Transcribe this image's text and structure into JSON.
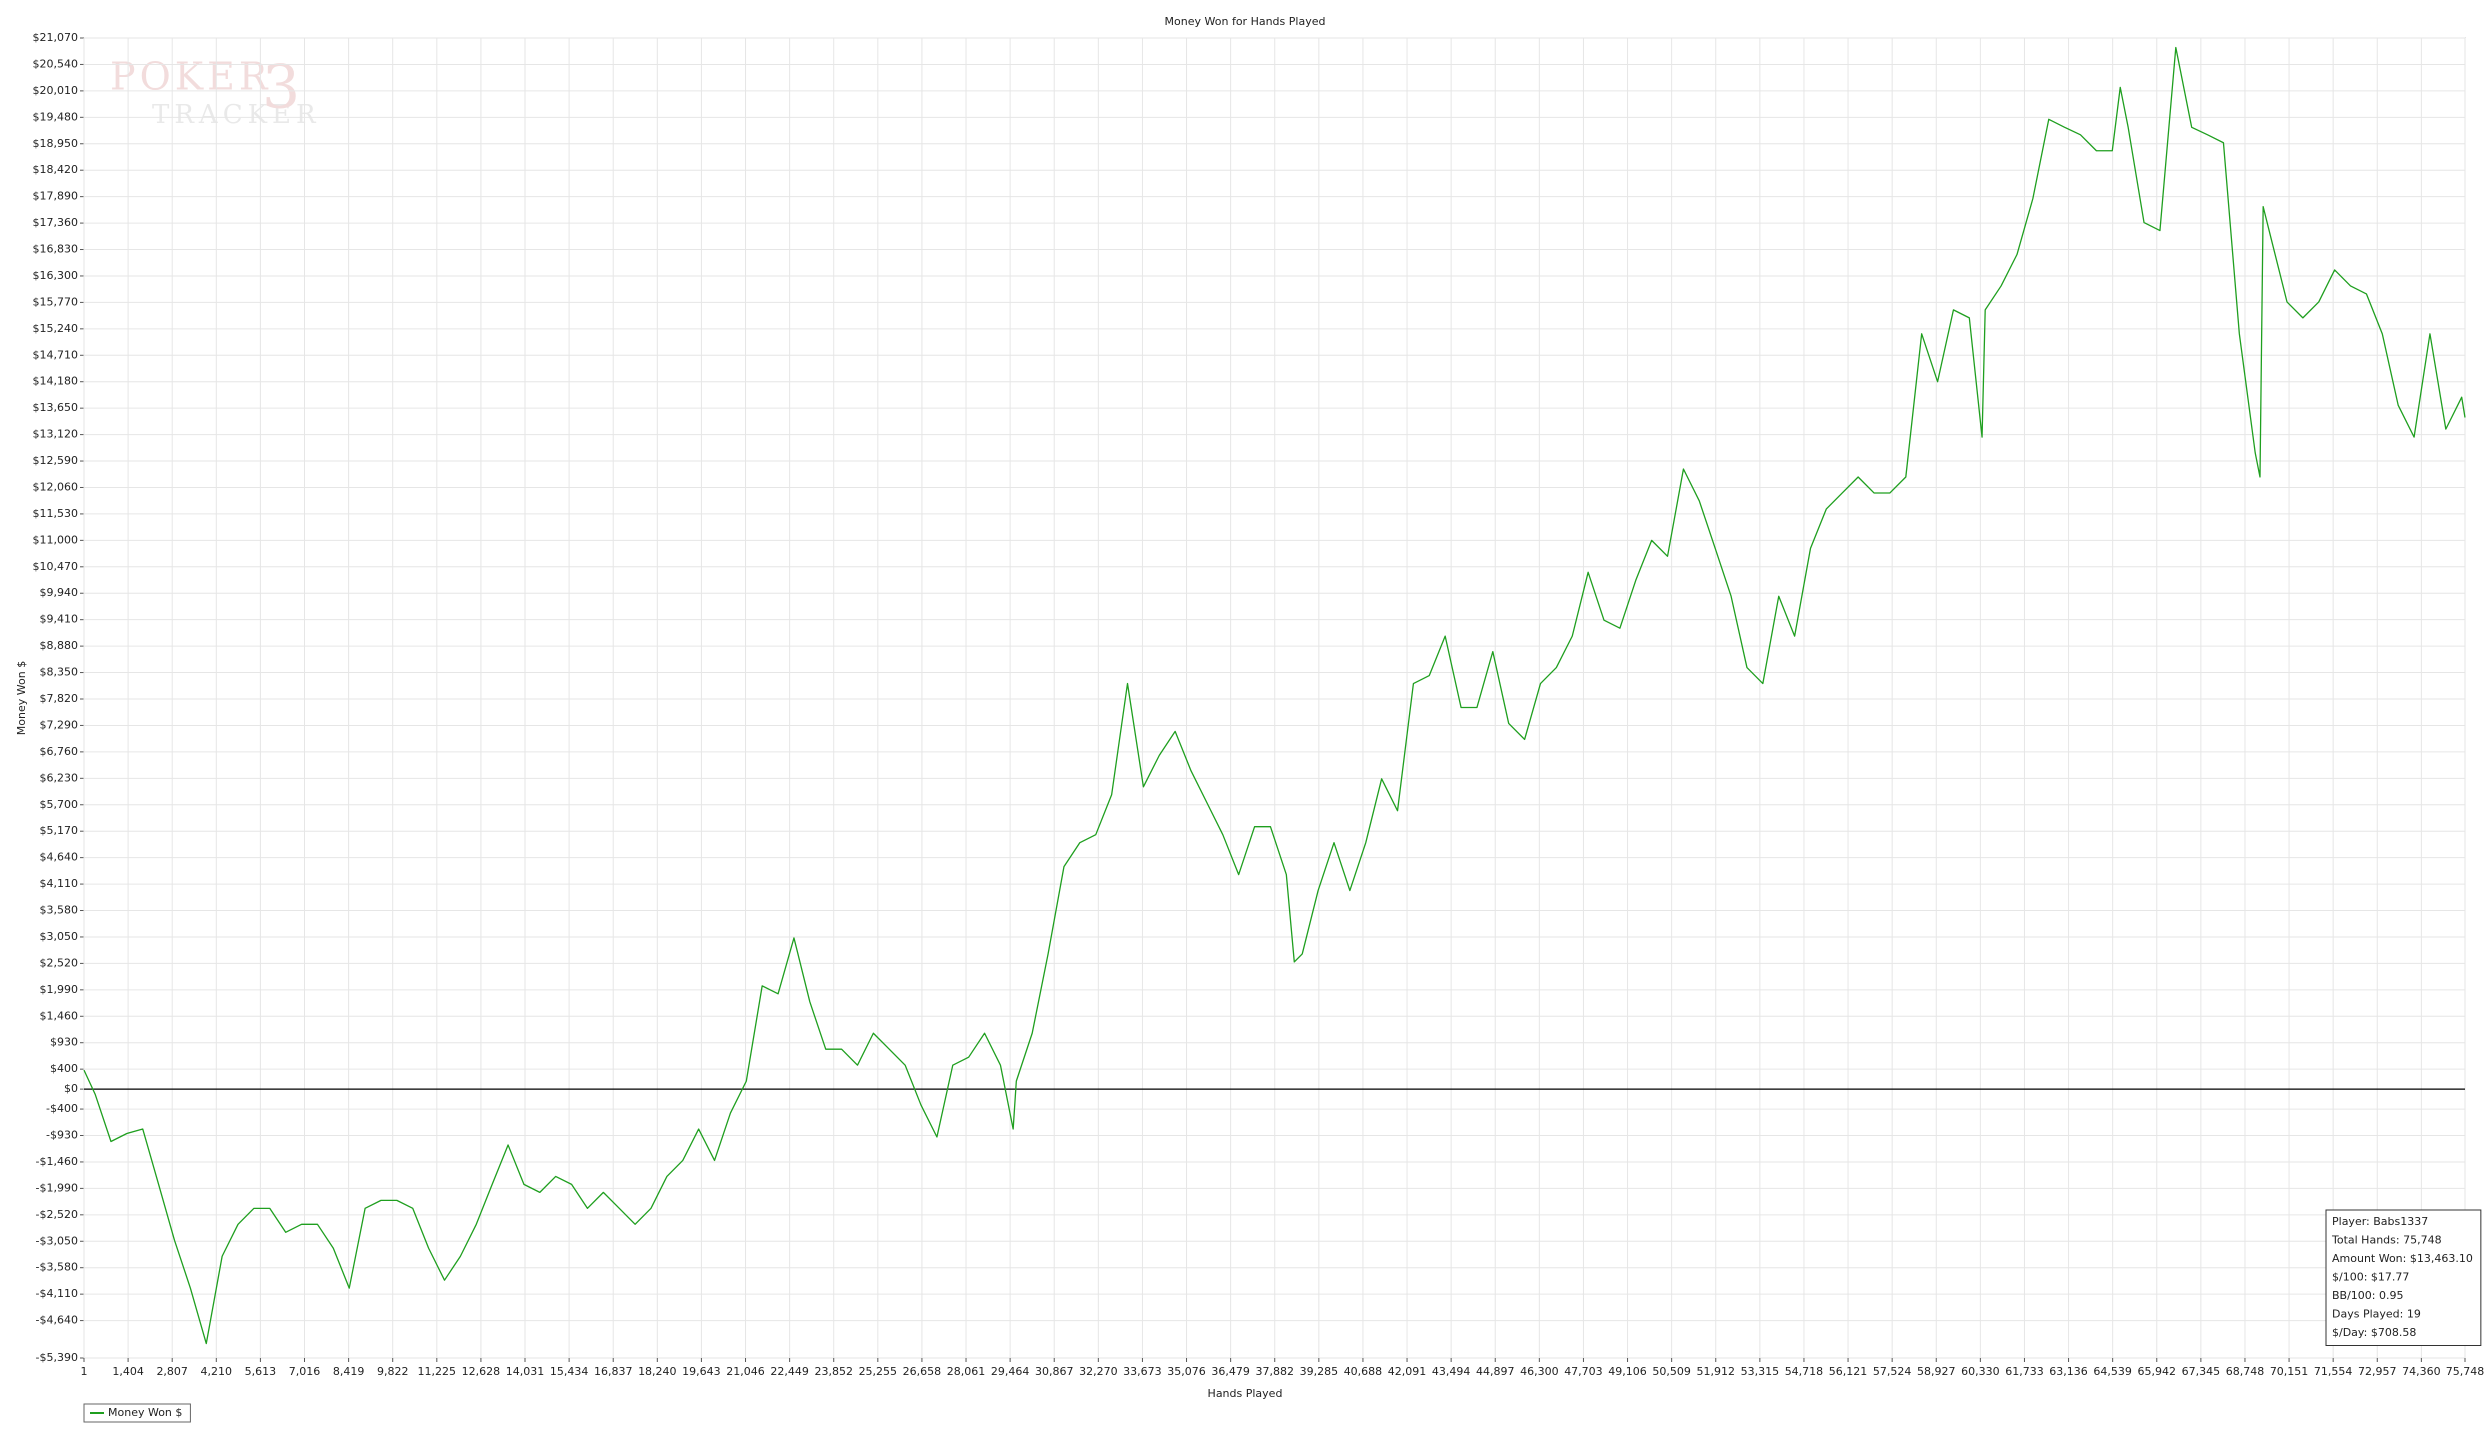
{
  "chart_data": {
    "type": "line",
    "title": "Money Won for Hands Played",
    "xlabel": "Hands Played",
    "ylabel": "Money Won $",
    "watermark": [
      "POKER",
      "TRACKER",
      "3"
    ],
    "stats": [
      "Player: Babs1337",
      "Total Hands: 75,748",
      "Amount Won: $13,463.10",
      "$/100: $17.77",
      "BB/100: 0.95",
      "Days Played: 19",
      "$/Day: $708.58"
    ],
    "xlim": [
      1,
      75748
    ],
    "ylim": [
      -5390,
      21070
    ],
    "grid": true,
    "zero_line": true,
    "legend": "bottom-left",
    "xticks": [
      1,
      {
        "value": 1404,
        "label": "1,404"
      },
      {
        "value": 2807,
        "label": "2,807"
      },
      {
        "value": 4210,
        "label": "4,210"
      },
      {
        "value": 5613,
        "label": "5,613"
      },
      {
        "value": 7016,
        "label": "7,016"
      },
      {
        "value": 8419,
        "label": "8,419"
      },
      {
        "value": 9822,
        "label": "9,822"
      },
      {
        "value": 11225,
        "label": "11,225"
      },
      {
        "value": 12628,
        "label": "12,628"
      },
      {
        "value": 14031,
        "label": "14,031"
      },
      {
        "value": 15434,
        "label": "15,434"
      },
      {
        "value": 16837,
        "label": "16,837"
      },
      {
        "value": 18240,
        "label": "18,240"
      },
      {
        "value": 19643,
        "label": "19,643"
      },
      {
        "value": 21046,
        "label": "21,046"
      },
      {
        "value": 22449,
        "label": "22,449"
      },
      {
        "value": 23852,
        "label": "23,852"
      },
      {
        "value": 25255,
        "label": "25,255"
      },
      {
        "value": 26658,
        "label": "26,658"
      },
      {
        "value": 28061,
        "label": "28,061"
      },
      {
        "value": 29464,
        "label": "29,464"
      },
      {
        "value": 30867,
        "label": "30,867"
      },
      {
        "value": 32270,
        "label": "32,270"
      },
      {
        "value": 33673,
        "label": "33,673"
      },
      {
        "value": 35076,
        "label": "35,076"
      },
      {
        "value": 36479,
        "label": "36,479"
      },
      {
        "value": 37882,
        "label": "37,882"
      },
      {
        "value": 39285,
        "label": "39,285"
      },
      {
        "value": 40688,
        "label": "40,688"
      },
      {
        "value": 42091,
        "label": "42,091"
      },
      {
        "value": 43494,
        "label": "43,494"
      },
      {
        "value": 44897,
        "label": "44,897"
      },
      {
        "value": 46300,
        "label": "46,300"
      },
      {
        "value": 47703,
        "label": "47,703"
      },
      {
        "value": 49106,
        "label": "49,106"
      },
      {
        "value": 50509,
        "label": "50,509"
      },
      {
        "value": 51912,
        "label": "51,912"
      },
      {
        "value": 53315,
        "label": "53,315"
      },
      {
        "value": 54718,
        "label": "54,718"
      },
      {
        "value": 56121,
        "label": "56,121"
      },
      {
        "value": 57524,
        "label": "57,524"
      },
      {
        "value": 58927,
        "label": "58,927"
      },
      {
        "value": 60330,
        "label": "60,330"
      },
      {
        "value": 61733,
        "label": "61,733"
      },
      {
        "value": 63136,
        "label": "63,136"
      },
      {
        "value": 64539,
        "label": "64,539"
      },
      {
        "value": 65942,
        "label": "65,942"
      },
      {
        "value": 67345,
        "label": "67,345"
      },
      {
        "value": 68748,
        "label": "68,748"
      },
      {
        "value": 70151,
        "label": "70,151"
      },
      {
        "value": 71554,
        "label": "71,554"
      },
      {
        "value": 72957,
        "label": "72,957"
      },
      {
        "value": 74360,
        "label": "74,360"
      },
      {
        "value": 75748,
        "label": "75,748"
      }
    ],
    "yticks": [
      {
        "value": 21070,
        "label": "$21,070"
      },
      {
        "value": 20540,
        "label": "$20,540"
      },
      {
        "value": 20010,
        "label": "$20,010"
      },
      {
        "value": 19480,
        "label": "$19,480"
      },
      {
        "value": 18950,
        "label": "$18,950"
      },
      {
        "value": 18420,
        "label": "$18,420"
      },
      {
        "value": 17890,
        "label": "$17,890"
      },
      {
        "value": 17360,
        "label": "$17,360"
      },
      {
        "value": 16830,
        "label": "$16,830"
      },
      {
        "value": 16300,
        "label": "$16,300"
      },
      {
        "value": 15770,
        "label": "$15,770"
      },
      {
        "value": 15240,
        "label": "$15,240"
      },
      {
        "value": 14710,
        "label": "$14,710"
      },
      {
        "value": 14180,
        "label": "$14,180"
      },
      {
        "value": 13650,
        "label": "$13,650"
      },
      {
        "value": 13120,
        "label": "$13,120"
      },
      {
        "value": 12590,
        "label": "$12,590"
      },
      {
        "value": 12060,
        "label": "$12,060"
      },
      {
        "value": 11530,
        "label": "$11,530"
      },
      {
        "value": 11000,
        "label": "$11,000"
      },
      {
        "value": 10470,
        "label": "$10,470"
      },
      {
        "value": 9940,
        "label": "$9,940"
      },
      {
        "value": 9410,
        "label": "$9,410"
      },
      {
        "value": 8880,
        "label": "$8,880"
      },
      {
        "value": 8350,
        "label": "$8,350"
      },
      {
        "value": 7820,
        "label": "$7,820"
      },
      {
        "value": 7290,
        "label": "$7,290"
      },
      {
        "value": 6760,
        "label": "$6,760"
      },
      {
        "value": 6230,
        "label": "$6,230"
      },
      {
        "value": 5700,
        "label": "$5,700"
      },
      {
        "value": 5170,
        "label": "$5,170"
      },
      {
        "value": 4640,
        "label": "$4,640"
      },
      {
        "value": 4110,
        "label": "$4,110"
      },
      {
        "value": 3580,
        "label": "$3,580"
      },
      {
        "value": 3050,
        "label": "$3,050"
      },
      {
        "value": 2520,
        "label": "$2,520"
      },
      {
        "value": 1990,
        "label": "$1,990"
      },
      {
        "value": 1460,
        "label": "$1,460"
      },
      {
        "value": 930,
        "label": "$930"
      },
      {
        "value": 400,
        "label": "$400"
      },
      {
        "value": 0,
        "label": "$0"
      },
      {
        "value": -400,
        "label": "-$400"
      },
      {
        "value": -930,
        "label": "-$930"
      },
      {
        "value": -1460,
        "label": "-$1,460"
      },
      {
        "value": -1990,
        "label": "-$1,990"
      },
      {
        "value": -2520,
        "label": "-$2,520"
      },
      {
        "value": -3050,
        "label": "-$3,050"
      },
      {
        "value": -3580,
        "label": "-$3,580"
      },
      {
        "value": -4110,
        "label": "-$4,110"
      },
      {
        "value": -4640,
        "label": "-$4,640"
      },
      {
        "value": -5390,
        "label": "-$5,390"
      }
    ],
    "x": [
      1,
      354,
      859,
      1364,
      1870,
      2375,
      2880,
      3386,
      3891,
      4396,
      4901,
      5407,
      5912,
      6417,
      6923,
      7428,
      7933,
      8439,
      8944,
      9449,
      9954,
      10460,
      10965,
      11470,
      11976,
      12481,
      12986,
      13492,
      13997,
      14502,
      15007,
      15513,
      16018,
      16523,
      17029,
      17534,
      18039,
      18545,
      19050,
      19555,
      20060,
      20566,
      21071,
      21576,
      22082,
      22587,
      23092,
      23598,
      24103,
      24608,
      25113,
      25619,
      26124,
      26629,
      27135,
      27640,
      28145,
      28651,
      29156,
      29560,
      29661,
      30166,
      30672,
      31177,
      31682,
      32188,
      32693,
      33198,
      33704,
      34209,
      34714,
      35219,
      35725,
      36230,
      36735,
      37241,
      37746,
      38251,
      38504,
      38757,
      39262,
      39767,
      40272,
      40778,
      41283,
      41788,
      42294,
      42799,
      43304,
      43810,
      44315,
      44820,
      45325,
      45831,
      46336,
      46841,
      47347,
      47852,
      48357,
      48863,
      49368,
      49873,
      50378,
      50884,
      51389,
      51894,
      52400,
      52905,
      53410,
      53916,
      54421,
      54926,
      55431,
      55937,
      56442,
      56947,
      57453,
      57958,
      58463,
      58969,
      59474,
      59979,
      60384,
      60484,
      60990,
      61495,
      62000,
      62506,
      63011,
      63516,
      64022,
      64527,
      64780,
      65032,
      65537,
      66043,
      66548,
      67053,
      67559,
      68064,
      68569,
      69075,
      69226,
      69327,
      69580,
      70085,
      70590,
      71096,
      71601,
      72106,
      72612,
      73117,
      73622,
      74128,
      74633,
      75138,
      75643,
      75748
    ],
    "series": [
      {
        "name": "Money Won $",
        "color": "#1f9f1f",
        "values": [
          380,
          -100,
          -1050,
          -890,
          -800,
          -1910,
          -3030,
          -3990,
          -5100,
          -3350,
          -2710,
          -2390,
          -2390,
          -2870,
          -2710,
          -2710,
          -3190,
          -3990,
          -2390,
          -2230,
          -2230,
          -2390,
          -3190,
          -3830,
          -3350,
          -2710,
          -1910,
          -1120,
          -1910,
          -2070,
          -1750,
          -1910,
          -2390,
          -2070,
          -2390,
          -2710,
          -2390,
          -1750,
          -1430,
          -800,
          -1430,
          -480,
          160,
          2070,
          1910,
          3030,
          1750,
          800,
          800,
          480,
          1120,
          800,
          480,
          -320,
          -960,
          480,
          640,
          1120,
          480,
          -800,
          160,
          1120,
          2710,
          4460,
          4940,
          5100,
          5900,
          8130,
          6060,
          6690,
          7170,
          6380,
          5740,
          5100,
          4300,
          5260,
          5260,
          4300,
          2550,
          2710,
          3980,
          4940,
          3980,
          4940,
          6220,
          5580,
          8130,
          8290,
          9080,
          7650,
          7650,
          8770,
          7330,
          7010,
          8130,
          8450,
          9080,
          10360,
          9400,
          9240,
          10200,
          11000,
          10680,
          12430,
          11790,
          10840,
          9880,
          8450,
          8130,
          9880,
          9080,
          10840,
          11630,
          11950,
          12270,
          11950,
          11950,
          12270,
          15140,
          14180,
          15620,
          15460,
          13070,
          15620,
          16100,
          16730,
          17850,
          19440,
          19280,
          19130,
          18810,
          18810,
          20080,
          19280,
          17370,
          17210,
          20880,
          19280,
          19130,
          18970,
          15140,
          12750,
          12270,
          17690,
          17050,
          15780,
          15460,
          15780,
          16420,
          16100,
          15940,
          15140,
          13710,
          13070,
          15140,
          13230,
          13870,
          13463
        ]
      }
    ]
  }
}
